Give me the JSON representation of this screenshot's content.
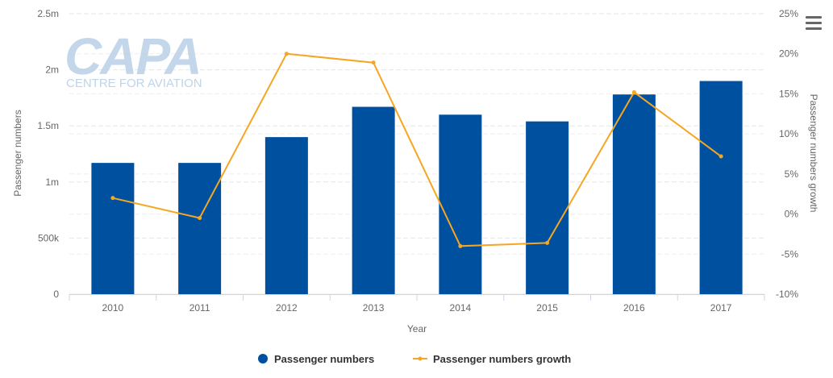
{
  "watermark": {
    "logo_text": "CAPA",
    "subtitle": "CENTRE FOR AVIATION"
  },
  "legend": {
    "bar_label": "Passenger numbers",
    "line_label": "Passenger numbers growth"
  },
  "colors": {
    "bar": "#0050a0",
    "line": "#f5a623",
    "grid": "#e6e6e6",
    "logo": "#b8cfe6"
  },
  "icons": {
    "menu": "hamburger-menu-icon"
  },
  "chart_data": {
    "type": "bar",
    "categories": [
      "2010",
      "2011",
      "2012",
      "2013",
      "2014",
      "2015",
      "2016",
      "2017"
    ],
    "xlabel": "Year",
    "ylabel": "Passenger numbers",
    "y2label": "Passenger numbers growth",
    "ylim": [
      0,
      2500000
    ],
    "y2lim": [
      -10,
      25
    ],
    "y_ticks": [
      {
        "value": 0,
        "label": "0"
      },
      {
        "value": 500000,
        "label": "500k"
      },
      {
        "value": 1000000,
        "label": "1m"
      },
      {
        "value": 1500000,
        "label": "1.5m"
      },
      {
        "value": 2000000,
        "label": "2m"
      },
      {
        "value": 2500000,
        "label": "2.5m"
      }
    ],
    "y2_ticks": [
      {
        "value": -10,
        "label": "-10%"
      },
      {
        "value": -5,
        "label": "-5%"
      },
      {
        "value": 0,
        "label": "0%"
      },
      {
        "value": 5,
        "label": "5%"
      },
      {
        "value": 10,
        "label": "10%"
      },
      {
        "value": 15,
        "label": "15%"
      },
      {
        "value": 20,
        "label": "20%"
      },
      {
        "value": 25,
        "label": "25%"
      }
    ],
    "grid": true,
    "legend_position": "bottom-center",
    "series": [
      {
        "name": "Passenger numbers",
        "type": "bar",
        "axis": "left",
        "values": [
          1170000,
          1170000,
          1400000,
          1670000,
          1600000,
          1540000,
          1780000,
          1900000
        ]
      },
      {
        "name": "Passenger numbers growth",
        "type": "line",
        "axis": "right",
        "values": [
          2.0,
          -0.5,
          20.0,
          18.9,
          -4.0,
          -3.6,
          15.2,
          7.2
        ]
      }
    ]
  }
}
